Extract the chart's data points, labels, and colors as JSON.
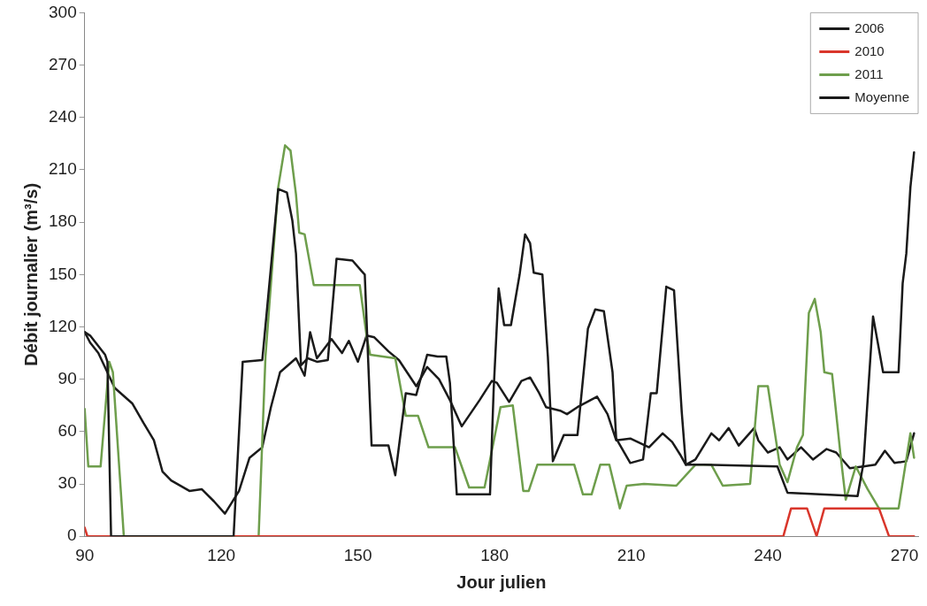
{
  "chart_data": {
    "type": "line",
    "xlabel": "Jour julien",
    "ylabel": "Débit journalier (m³/s)",
    "xlim": [
      90,
      273
    ],
    "xticks": [
      90,
      120,
      150,
      180,
      210,
      240,
      270
    ],
    "ylim": [
      0,
      300
    ],
    "yticks": [
      0,
      30,
      60,
      90,
      120,
      150,
      180,
      210,
      240,
      270,
      300
    ],
    "grid": false,
    "legend": "top right",
    "marker": "none",
    "line_style": "solid",
    "series": [
      {
        "name": "2006",
        "color": "#1a1a1a",
        "x": [
          90,
          91.2,
          94.5,
          95,
          95.8,
          122.7,
          124.7,
          129,
          132.5,
          134.4,
          135.6,
          136.4,
          137.5,
          139,
          141,
          143.4,
          145.3,
          148.8,
          150.8,
          151.5,
          152,
          153,
          156.7,
          158.2,
          160.5,
          162.8,
          165.2,
          167.5,
          169.4,
          170.2,
          171.7,
          179,
          179.8,
          180.9,
          182.1,
          183.6,
          185.5,
          186.7,
          187.8,
          188.6,
          190.5,
          191.7,
          192.8,
          195.2,
          198.2,
          200.5,
          202.1,
          204,
          205.9,
          206.7,
          209.8,
          212.6,
          214.3,
          215.6,
          217.7,
          219.4,
          221.1,
          222,
          225.9,
          242.1,
          244.3,
          259.7,
          261,
          263.1,
          265.3,
          268.7,
          269.6,
          270.4,
          271.3,
          272.1
        ],
        "values": [
          117,
          115,
          104,
          100,
          0,
          0,
          100,
          101,
          199,
          197,
          181,
          162,
          98,
          102,
          100,
          101,
          159,
          158,
          152,
          150,
          117,
          52,
          52,
          35,
          82,
          81,
          104,
          103,
          103,
          88,
          24,
          24,
          84,
          142,
          121,
          121,
          150,
          173,
          168,
          151,
          150,
          103,
          43,
          58,
          58,
          119,
          130,
          129,
          94,
          56,
          42,
          44,
          82,
          82,
          143,
          141,
          71,
          41,
          41,
          40,
          25,
          23,
          42,
          126,
          94,
          94,
          145,
          162,
          200,
          220
        ]
      },
      {
        "name": "2010",
        "color": "#d9362b",
        "x": [
          90,
          90.6,
          243.4,
          245.1,
          248.6,
          250.7,
          252.4,
          264.4,
          266.6,
          272.1
        ],
        "values": [
          5,
          0,
          0,
          16,
          16,
          0,
          16,
          16,
          0,
          0
        ]
      },
      {
        "name": "2011",
        "color": "#6e9e4c",
        "x": [
          90,
          90.8,
          93.5,
          95.4,
          96.2,
          98.6,
          128.2,
          129.7,
          132.5,
          134,
          135.2,
          136.4,
          137.1,
          138.3,
          140.3,
          150.4,
          152,
          152.7,
          158.2,
          160.5,
          163.2,
          165.5,
          171.3,
          174.4,
          177.8,
          181.3,
          184,
          186.3,
          187.5,
          189.4,
          197.5,
          199.4,
          201.3,
          203.2,
          205.2,
          207.5,
          209,
          212.8,
          219.9,
          224.1,
          227.6,
          230.1,
          236.1,
          237.9,
          240,
          242.6,
          244.3,
          246.4,
          247.7,
          249,
          250.3,
          251.6,
          252.4,
          254.1,
          255.9,
          257.1,
          259.3,
          261.9,
          264.4,
          268.7,
          271.3,
          272.1
        ],
        "values": [
          73,
          40,
          40,
          100,
          94,
          0,
          0,
          103,
          200,
          224,
          221,
          196,
          174,
          173,
          144,
          144,
          113,
          104,
          102,
          69,
          69,
          51,
          51,
          28,
          28,
          74,
          75,
          26,
          26,
          41,
          41,
          24,
          24,
          41,
          41,
          16,
          29,
          30,
          29,
          41,
          41,
          29,
          30,
          86,
          86,
          41,
          31,
          51,
          58,
          128,
          136,
          117,
          94,
          93,
          48,
          21,
          40,
          27,
          16,
          16,
          59,
          45
        ]
      },
      {
        "name": "Moyenne",
        "color": "#1a1a1a",
        "x": [
          90,
          91.2,
          93,
          96.6,
          100.5,
          102.9,
          105.2,
          107.1,
          109,
          113,
          115.7,
          118.4,
          120.8,
          123.9,
          126.2,
          129,
          130.9,
          132.9,
          136.4,
          138.3,
          139.5,
          141,
          144.2,
          146.5,
          148,
          150,
          151.9,
          153.6,
          156.7,
          159,
          162.8,
          165.2,
          167.8,
          170.2,
          172.8,
          176.7,
          179.4,
          180.5,
          183.2,
          185.9,
          187.8,
          189.8,
          191.3,
          194.4,
          195.9,
          198.2,
          202.5,
          204.8,
          206.7,
          209.8,
          213.9,
          216.9,
          219,
          220.7,
          222,
          224.1,
          227.6,
          229.3,
          231.4,
          233.6,
          237,
          237.9,
          240,
          242.6,
          244.3,
          247.3,
          249.9,
          252.9,
          255,
          258,
          261,
          263.6,
          265.7,
          267.8,
          270.4,
          272.1
        ],
        "values": [
          117,
          111,
          105,
          85,
          76,
          65,
          55,
          37,
          32,
          26,
          27,
          20,
          13,
          26,
          45,
          51,
          74,
          94,
          102,
          92,
          117,
          102,
          113,
          105,
          112,
          100,
          115,
          114,
          106,
          101,
          86,
          97,
          90,
          78,
          63,
          78,
          89,
          88,
          77,
          89,
          91,
          82,
          74,
          72,
          70,
          74,
          80,
          70,
          55,
          56,
          51,
          59,
          54,
          47,
          41,
          44,
          59,
          55,
          62,
          52,
          62,
          55,
          48,
          51,
          44,
          51,
          44,
          50,
          48,
          39,
          40,
          41,
          49,
          42,
          43,
          59
        ]
      }
    ]
  }
}
